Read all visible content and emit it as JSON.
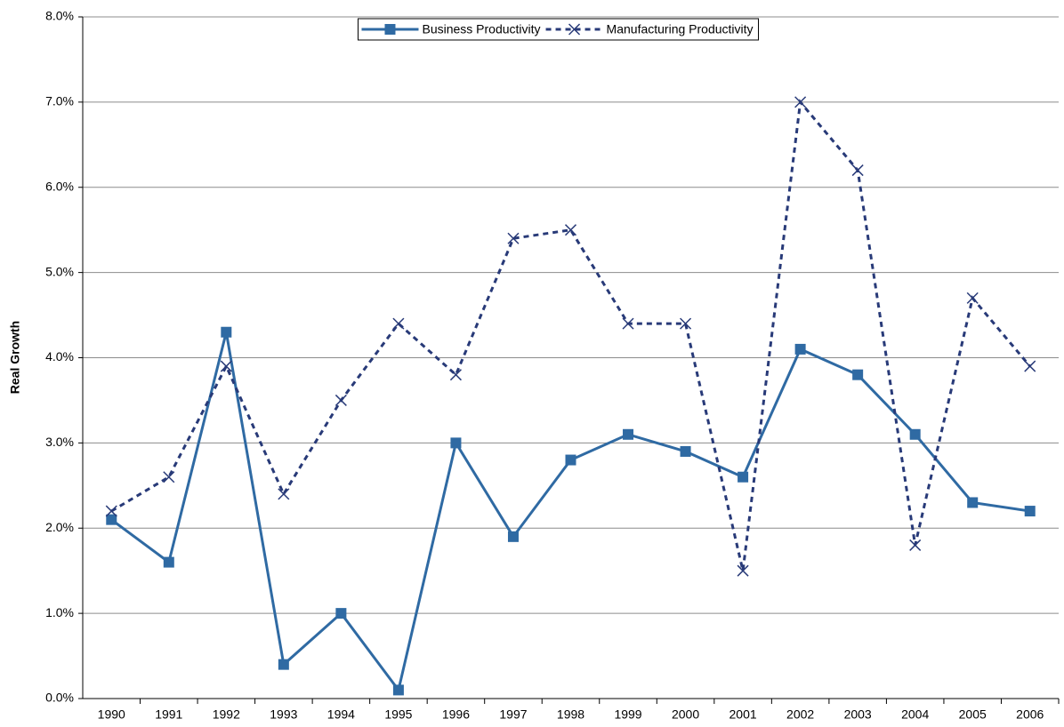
{
  "chart_data": {
    "type": "line",
    "y_label": "Real Growth",
    "categories": [
      "1990",
      "1991",
      "1992",
      "1993",
      "1994",
      "1995",
      "1996",
      "1997",
      "1998",
      "1999",
      "2000",
      "2001",
      "2002",
      "2003",
      "2004",
      "2005",
      "2006"
    ],
    "series": [
      {
        "name": "Business Productivity",
        "color": "#2f6aa3",
        "marker": "square",
        "dash": false,
        "values": [
          2.1,
          1.6,
          4.3,
          0.4,
          1.0,
          0.1,
          3.0,
          1.9,
          2.8,
          3.1,
          2.9,
          2.6,
          4.1,
          3.8,
          3.1,
          2.3,
          2.2
        ]
      },
      {
        "name": "Manufacturing Productivity",
        "color": "#283a78",
        "marker": "x",
        "dash": true,
        "values": [
          2.2,
          2.6,
          3.9,
          2.4,
          3.5,
          4.4,
          3.8,
          5.4,
          5.5,
          4.4,
          4.4,
          1.5,
          7.0,
          6.2,
          1.8,
          4.7,
          3.9
        ]
      }
    ],
    "ylim": [
      0,
      8
    ],
    "yticks": [
      {
        "value": 0,
        "label": "0.0%"
      },
      {
        "value": 1,
        "label": "1.0%"
      },
      {
        "value": 2,
        "label": "2.0%"
      },
      {
        "value": 3,
        "label": "3.0%"
      },
      {
        "value": 4,
        "label": "4.0%"
      },
      {
        "value": 5,
        "label": "5.0%"
      },
      {
        "value": 6,
        "label": "6.0%"
      },
      {
        "value": 7,
        "label": "7.0%"
      },
      {
        "value": 8,
        "label": "8.0%"
      }
    ],
    "grid": true,
    "legend": "top"
  }
}
